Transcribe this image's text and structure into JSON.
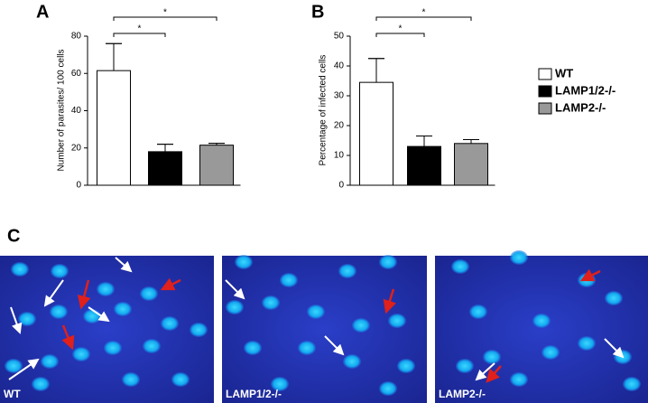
{
  "chart_data": [
    {
      "type": "bar",
      "panel": "A",
      "ylabel": "Number of parasites/ 100 cells",
      "categories": [
        "WT",
        "LAMP1/2-/-",
        "LAMP2-/-"
      ],
      "values": [
        61.5,
        18,
        21.5
      ],
      "errors": [
        14.5,
        4,
        1
      ],
      "colors": [
        "#ffffff",
        "#000000",
        "#999999"
      ],
      "ylim": [
        0,
        80
      ],
      "yticks": [
        0,
        20,
        40,
        60,
        80
      ],
      "annotations": [
        "*",
        "*"
      ]
    },
    {
      "type": "bar",
      "panel": "B",
      "ylabel": "Percentage of infected cells",
      "categories": [
        null,
        null,
        null
      ],
      "values": [
        34.5,
        13,
        14
      ],
      "errors": [
        8,
        3.5,
        1.3
      ],
      "colors": [
        "#ffffff",
        "#000000",
        "#999999"
      ],
      "ylim": [
        0,
        50
      ],
      "yticks": [
        0,
        10,
        20,
        30,
        40,
        50
      ],
      "annotations": [
        "*",
        "*"
      ]
    }
  ],
  "panel_c": {
    "label": "C",
    "images": [
      "WT",
      "LAMP1/2-/-",
      "LAMP2-/-"
    ]
  }
}
